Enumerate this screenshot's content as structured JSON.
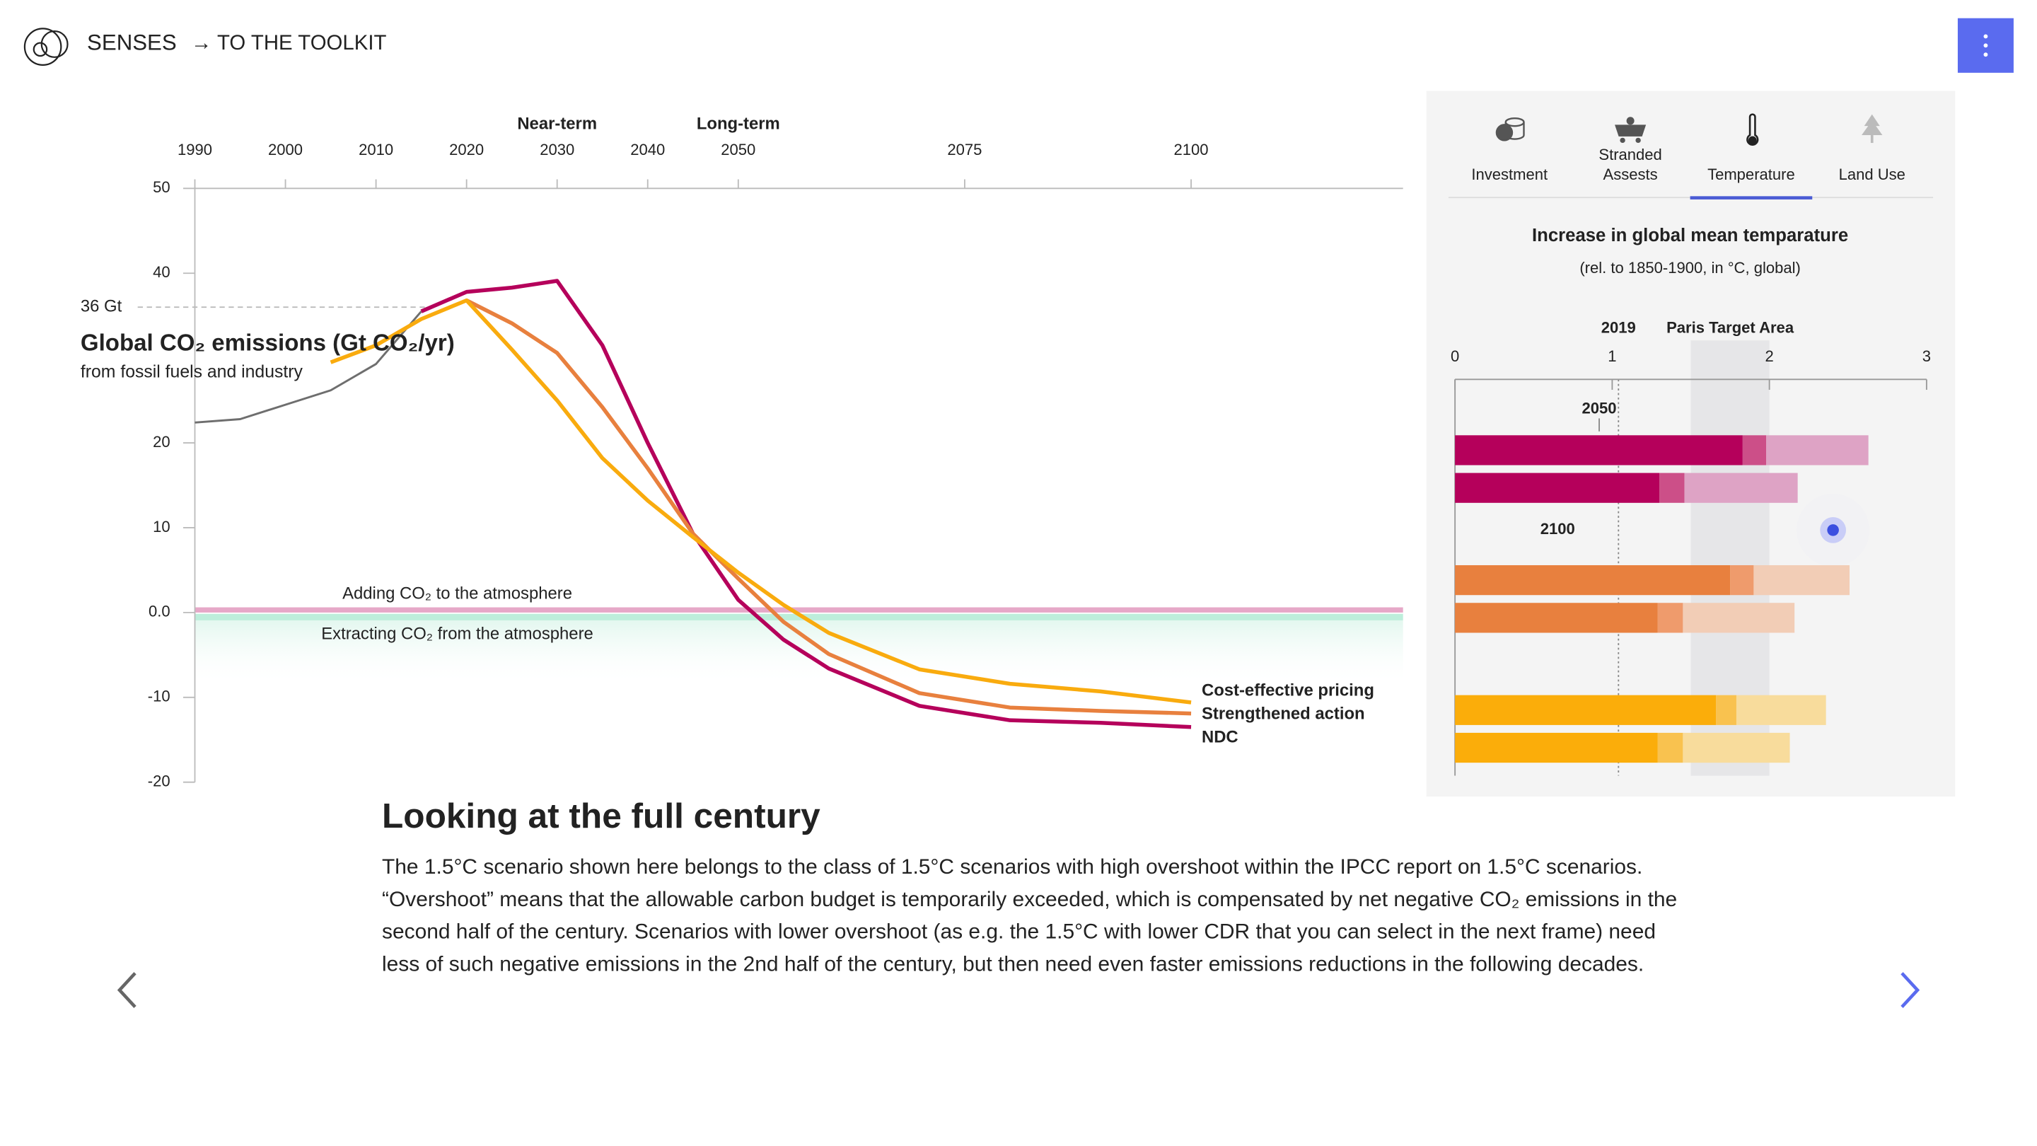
{
  "header": {
    "brand": "SENSES",
    "link": "→ TO THE TOOLKIT"
  },
  "chart_data": [
    {
      "type": "line",
      "title": "Global CO₂ emissions (Gt CO₂/yr)",
      "subtitle": "from fossil fuels and industry",
      "x": [
        1990,
        1995,
        2000,
        2005,
        2010,
        2015,
        2020,
        2025,
        2030,
        2035,
        2040,
        2045,
        2050,
        2055,
        2060,
        2070,
        2080,
        2090,
        2100
      ],
      "series": [
        {
          "color": "#6e6e6e",
          "values": [
            22.4,
            22.8,
            24.5,
            26.2,
            29.3,
            35.5,
            null,
            null,
            null,
            null,
            null,
            null,
            null,
            null,
            null,
            null,
            null,
            null,
            null
          ]
        },
        {
          "name": "NDC",
          "color": "#b5005b",
          "values": [
            null,
            null,
            null,
            null,
            null,
            35.5,
            37.8,
            38.3,
            39.1,
            31.5,
            20,
            9.3,
            1.5,
            -3.2,
            -6.6,
            -11,
            -12.7,
            -13,
            -13.5
          ]
        },
        {
          "name": "Strengthened action",
          "color": "#e8803e",
          "values": [
            null,
            null,
            null,
            null,
            null,
            null,
            36.8,
            34.1,
            30.6,
            24.2,
            17,
            9.3,
            4,
            -1.1,
            -4.9,
            -9.5,
            -11.2,
            -11.6,
            -11.9
          ]
        },
        {
          "name": "Cost-effective pricing",
          "color": "#f9ab0e",
          "values": [
            null,
            null,
            null,
            29.5,
            31.5,
            34.6,
            36.8,
            31,
            25,
            18.2,
            13.2,
            8.9,
            4.7,
            0.9,
            -2.4,
            -6.7,
            -8.4,
            -9.3,
            -10.6
          ]
        }
      ],
      "xlim": [
        1990,
        2123.4
      ],
      "xticks": [
        1990,
        2000,
        2010,
        2020,
        2030,
        2040,
        2050,
        2075,
        2100
      ],
      "ylim": [
        -20,
        50
      ],
      "yticks": [
        50,
        40,
        20,
        10,
        {
          "value": 0,
          "label": "0.0"
        },
        -10,
        -20
      ],
      "reference": {
        "value": 36,
        "label": "36 Gt"
      },
      "periods": [
        {
          "text": "Near-term",
          "x": 2030
        },
        {
          "text": "Long-term",
          "x": 2050
        }
      ],
      "above_zero_label": "Adding CO₂ to the atmosphere",
      "below_zero_label": "Extracting CO₂ from the atmosphere"
    },
    {
      "type": "bar",
      "title": "Increase in global mean temparature",
      "subtitle": "(rel. to 1850-1900, in °C, global)",
      "xlim": [
        0,
        3
      ],
      "xticks": [
        0,
        1,
        2,
        3
      ],
      "reference": {
        "value": 1.04,
        "label": "2019"
      },
      "target": {
        "label": "Paris Target Area",
        "range": [
          1.5,
          2
        ]
      },
      "row_labels": [
        "2050",
        "2100"
      ],
      "series": [
        {
          "colors": [
            "#b5005b",
            "#b5005b",
            "#e8803e",
            "#e8803e",
            "#fbad0a",
            "#fbad0a"
          ],
          "values": [
            1.83,
            1.3,
            1.75,
            1.29,
            1.66,
            1.29
          ]
        },
        {
          "colors": [
            "#cc4f88",
            "#cc4f88",
            "#ef9b6c",
            "#ef9b6c",
            "#f9c24f",
            "#f9c24f"
          ],
          "values": [
            0.15,
            0.16,
            0.15,
            0.16,
            0.13,
            0.16
          ]
        },
        {
          "colors": [
            "#dea3c5",
            "#dea3c5",
            "#f2cdb6",
            "#f2cdb6",
            "#f8dc9c",
            "#f8dc9c"
          ],
          "values": [
            0.65,
            0.72,
            0.61,
            0.71,
            0.57,
            0.68
          ]
        }
      ]
    }
  ],
  "tabs": [
    [
      "Investment"
    ],
    [
      "Stranded",
      "Assests"
    ],
    [
      "Temperature"
    ],
    [
      "Land Use"
    ]
  ],
  "active_tab": 2,
  "article": {
    "heading": "Looking at the full century",
    "lines": [
      "The 1.5°C scenario shown here belongs to the class of 1.5°C scenarios with high overshoot within the IPCC report on 1.5°C scenarios.",
      "“Overshoot” means that the allowable carbon budget is temporarily exceeded, which is compensated by net negative CO₂ emissions in the",
      "second half of the century. Scenarios with lower overshoot (as e.g. the 1.5°C with lower CDR that you can select in the next frame) need",
      "less of such negative emissions in the 2nd half of the century, but then need even faster emissions reductions in the following decades."
    ]
  }
}
